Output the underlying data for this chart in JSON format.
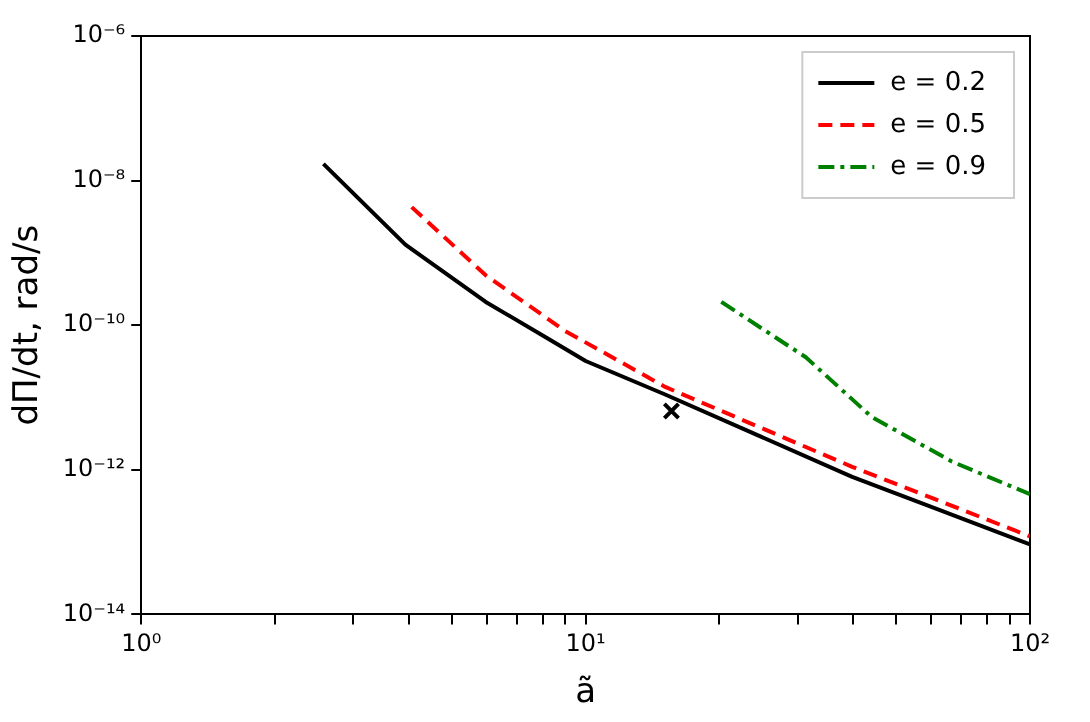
{
  "chart_data": {
    "type": "line",
    "xlabel": "ã",
    "ylabel": "dΠ/dt, rad/s",
    "log": "xy",
    "grid": false,
    "legend": "top right",
    "marker": "none",
    "xlim": [
      1,
      100
    ],
    "ylim": [
      1e-14,
      1e-06
    ],
    "xticks": [
      {
        "value": 1,
        "label": "10⁰"
      },
      {
        "value": 2,
        "label": null
      },
      {
        "value": 3,
        "label": null
      },
      {
        "value": 4,
        "label": null
      },
      {
        "value": 5,
        "label": null
      },
      {
        "value": 6,
        "label": null
      },
      {
        "value": 7,
        "label": null
      },
      {
        "value": 8,
        "label": null
      },
      {
        "value": 9,
        "label": null
      },
      {
        "value": 10,
        "label": "10¹"
      },
      {
        "value": 20,
        "label": null
      },
      {
        "value": 30,
        "label": null
      },
      {
        "value": 40,
        "label": null
      },
      {
        "value": 50,
        "label": null
      },
      {
        "value": 60,
        "label": null
      },
      {
        "value": 70,
        "label": null
      },
      {
        "value": 80,
        "label": null
      },
      {
        "value": 90,
        "label": null
      },
      {
        "value": 100,
        "label": "10²"
      }
    ],
    "yticks": [
      {
        "value": 1e-14,
        "label": "10⁻¹⁴"
      },
      {
        "value": 1e-12,
        "label": "10⁻¹²"
      },
      {
        "value": 1e-10,
        "label": "10⁻¹⁰"
      },
      {
        "value": 1e-08,
        "label": "10⁻⁸"
      },
      {
        "value": 1e-06,
        "label": "10⁻⁶"
      }
    ],
    "series": [
      {
        "name": "e = 0.2",
        "color": "#000000",
        "line_style": "solid",
        "x": [
          2.57,
          3.93,
          5.96,
          8.13,
          10,
          15.1,
          39.8,
          100
        ],
        "values": [
          1.7e-08,
          1.3e-09,
          2.1e-10,
          6.8e-11,
          3.2e-11,
          1.1e-11,
          8e-13,
          9.3e-14
        ]
      },
      {
        "name": "e = 0.5",
        "color": "#ff0000",
        "line_style": "dashed",
        "x": [
          4.06,
          5.96,
          9.0,
          15.1,
          39.8,
          100
        ],
        "values": [
          4.3e-09,
          4.9e-10,
          8.3e-11,
          1.4e-11,
          1.1e-12,
          1.2e-13
        ]
      },
      {
        "name": "e = 0.9",
        "color": "#008000",
        "line_style": "dashdot",
        "x": [
          20.2,
          31.3,
          44,
          66.7,
          100
        ],
        "values": [
          2.1e-10,
          3.6e-11,
          5.4e-12,
          1.3e-12,
          4.6e-13
        ]
      },
      {
        "type": "scatter",
        "color": "#000000",
        "marker": "cross",
        "x": [
          15.6
        ],
        "values": [
          6.5e-12
        ]
      }
    ]
  }
}
